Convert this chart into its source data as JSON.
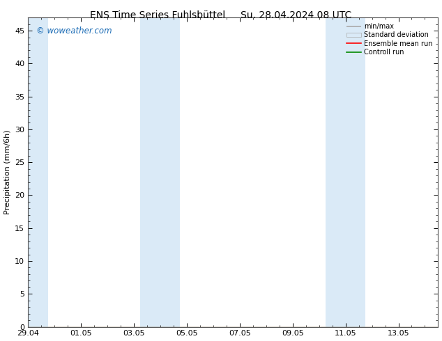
{
  "title_left": "ENS Time Series Fuhlsbüttel",
  "title_right": "Su. 28.04.2024 08 UTC",
  "ylabel": "Precipitation (mm/6h)",
  "background_color": "#ffffff",
  "plot_bg_color": "#ffffff",
  "shaded_band_color": "#daeaf7",
  "ylim": [
    0,
    47
  ],
  "yticks": [
    0,
    5,
    10,
    15,
    20,
    25,
    30,
    35,
    40,
    45
  ],
  "xtick_labels": [
    "29.04",
    "01.05",
    "03.05",
    "05.05",
    "07.05",
    "09.05",
    "11.05",
    "13.05"
  ],
  "xtick_positions": [
    0,
    2,
    4,
    6,
    8,
    10,
    12,
    14
  ],
  "xlim": [
    0,
    15.5
  ],
  "watermark": "© woweather.com",
  "watermark_color": "#1a6bb5",
  "shade_regions": [
    [
      0.0,
      0.75
    ],
    [
      4.25,
      5.0
    ],
    [
      5.0,
      5.75
    ],
    [
      11.25,
      12.0
    ],
    [
      12.0,
      12.75
    ]
  ],
  "title_fontsize": 10,
  "axis_fontsize": 8,
  "tick_fontsize": 8,
  "legend_gray": "#aaaaaa",
  "legend_blue": "#daeaf7",
  "legend_red": "#ff0000",
  "legend_green": "#008800"
}
